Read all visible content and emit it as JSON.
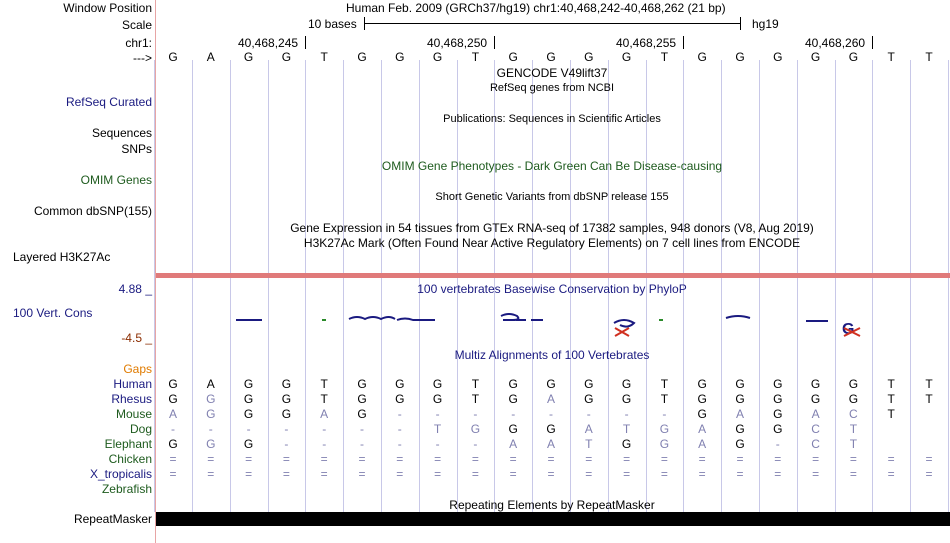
{
  "header": {
    "window_position_label": "Window Position",
    "window_position_value": "Human Feb. 2009 (GRCh37/hg19)   chr1:40,468,242-40,468,262 (21 bp)",
    "scale_label": "Scale",
    "scale_text": "10 bases",
    "scale_db": "hg19",
    "chrom_label": "chr1:",
    "coords": [
      "40,468,245",
      "40,468,250",
      "40,468,255",
      "40,468,260"
    ],
    "strand_label": "--->"
  },
  "sequence": [
    "G",
    "A",
    "G",
    "G",
    "T",
    "G",
    "G",
    "G",
    "T",
    "G",
    "G",
    "G",
    "G",
    "T",
    "G",
    "G",
    "G",
    "G",
    "G",
    "T",
    "T"
  ],
  "tracks": {
    "gencode_title": "GENCODE V49lift37",
    "refseq_subtitle": "RefSeq genes from NCBI",
    "refseq_label": "RefSeq Curated",
    "publications_title": "Publications: Sequences in Scientific Articles",
    "sequences_label": "Sequences",
    "snps_label": "SNPs",
    "omim_pheno_title": "OMIM Gene Phenotypes - Dark Green Can Be Disease-causing",
    "omim_genes_label": "OMIM Genes",
    "dbsnp_title": "Short Genetic Variants from dbSNP release 155",
    "dbsnp_label": "Common dbSNP(155)",
    "gtex_title": "Gene Expression in 54 tissues from GTEx RNA-seq of 17382 samples, 948 donors (V8, Aug 2019)",
    "h3k27ac_title": "H3K27Ac Mark (Often Found Near Active Regulatory Elements) on 7 cell lines from ENCODE",
    "h3k27ac_label": "Layered H3K27Ac",
    "phylop_title": "100 vertebrates Basewise Conservation by PhyloP",
    "phylop_max": "4.88 _",
    "phylop_min": "-4.5 _",
    "cons_label": "100 Vert. Cons",
    "multiz_title": "Multiz Alignments of 100 Vertebrates",
    "gaps_label": "Gaps",
    "repeat_title": "Repeating Elements by RepeatMasker",
    "repeat_label": "RepeatMasker"
  },
  "alignment": {
    "species": [
      {
        "name": "Human",
        "bases": "GAGGTGGGTGGGGTGGGGGTT"
      },
      {
        "name": "Rhesus",
        "bases": "GGGGTGGGTGAGGTGGGGGTT"
      },
      {
        "name": "Mouse",
        "bases": "AGGGAG--------GAGACT"
      },
      {
        "name": "Dog",
        "bases": "-------TGGGATGAGGCT"
      },
      {
        "name": "Elephant",
        "bases": "GGG------AATGGAG-CT"
      },
      {
        "name": "Chicken",
        "bases": "====================="
      },
      {
        "name": "X_tropicalis",
        "bases": "====================="
      },
      {
        "name": "Zebrafish",
        "bases": ""
      }
    ]
  },
  "colors": {
    "navy": "#1a1a80",
    "green": "#1e5b1e",
    "brown": "#8b2c00",
    "orange": "#e07b00",
    "grid": "#c8c8e8",
    "border": "#e7a5a5",
    "mismatch": "#8080b0"
  }
}
